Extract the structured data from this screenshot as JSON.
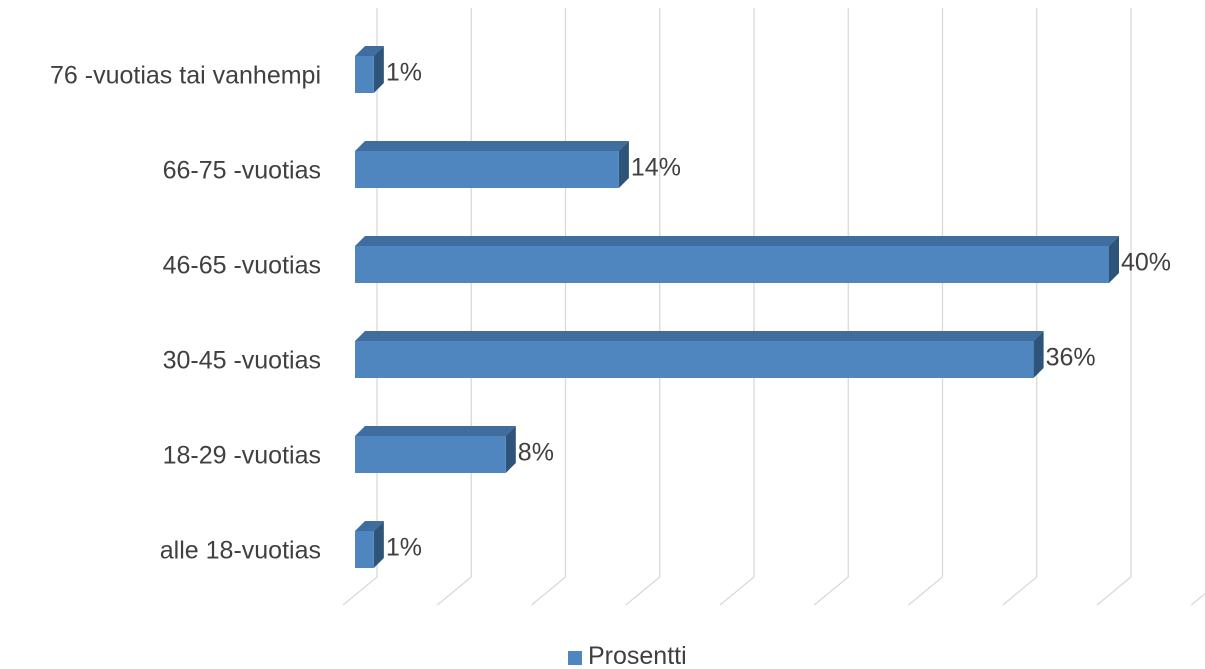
{
  "chart_data": {
    "type": "bar",
    "orientation": "horizontal",
    "style": "3d",
    "categories": [
      "76 -vuotias tai vanhempi",
      "66-75 -vuotias",
      "46-65 -vuotias",
      "30-45 -vuotias",
      "18-29 -vuotias",
      "alle 18-vuotias"
    ],
    "series": [
      {
        "name": "Prosentti",
        "values": [
          1,
          14,
          40,
          36,
          8,
          1
        ],
        "labels": [
          "1%",
          "14%",
          "40%",
          "36%",
          "8%",
          "1%"
        ],
        "color": "#4F86C0"
      }
    ],
    "title": "",
    "xlabel": "",
    "ylabel": "",
    "xlim": [
      0,
      45
    ],
    "grid": true,
    "legend_position": "bottom",
    "colors": {
      "bar_front": "#4F86C0",
      "bar_top": "#3F6D9F",
      "bar_side": "#2E5479",
      "grid": "#D9D9D9",
      "text": "#404040"
    }
  }
}
